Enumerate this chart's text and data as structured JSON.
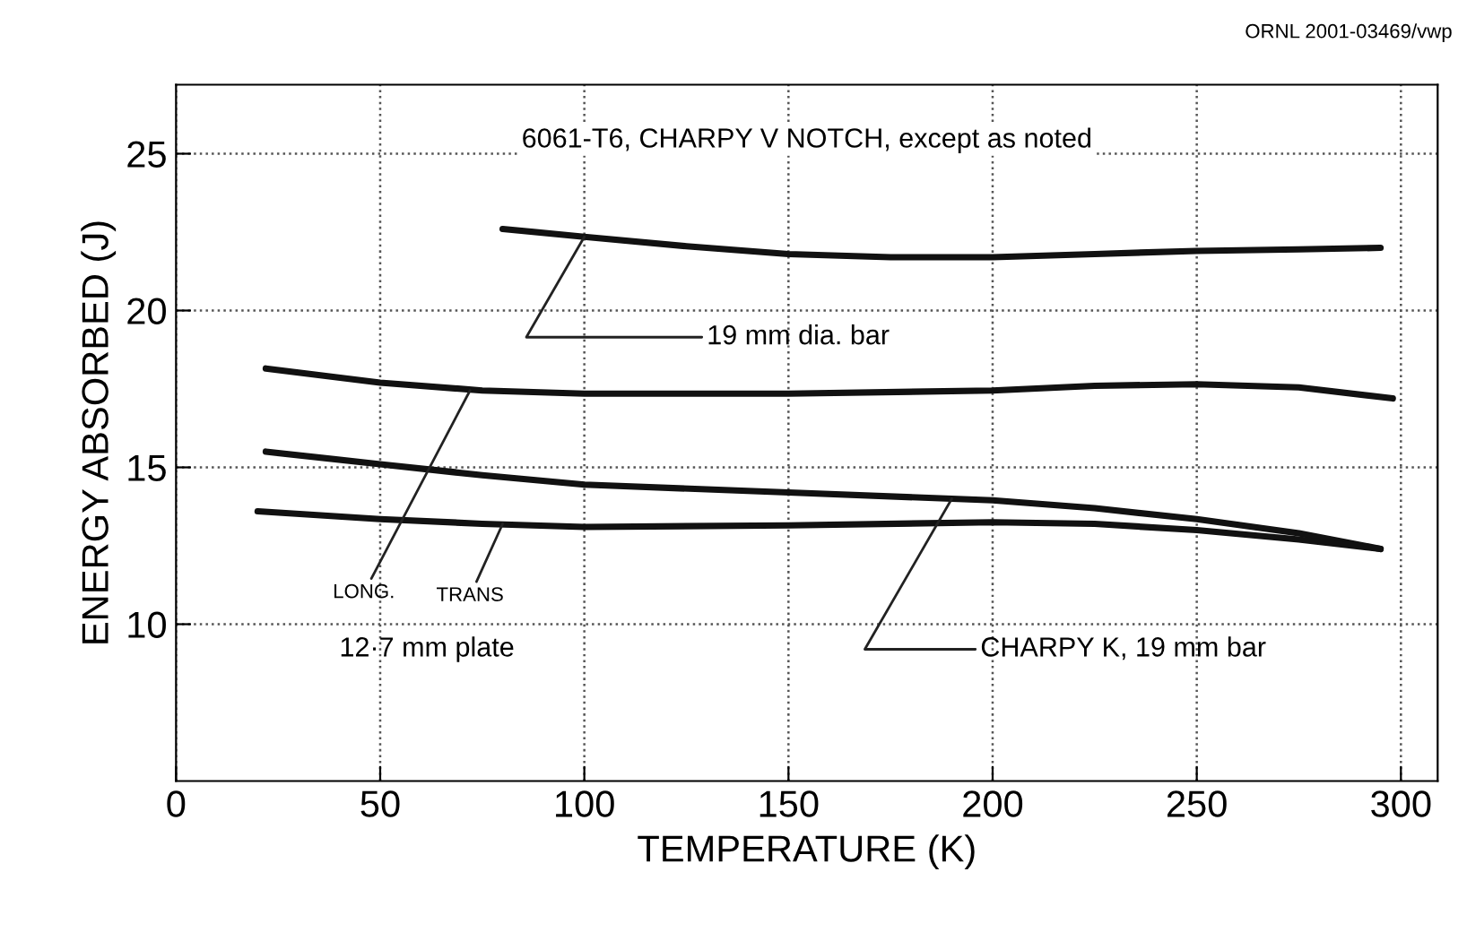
{
  "chart_data": {
    "type": "line",
    "xlabel": "TEMPERATURE (K)",
    "ylabel": "ENERGY ABSORBED (J)",
    "xlim": [
      0,
      309
    ],
    "ylim": [
      5,
      27.2
    ],
    "xticks": [
      0,
      50,
      100,
      150,
      200,
      250,
      300
    ],
    "yticks": [
      10,
      15,
      20,
      25
    ],
    "grid": true,
    "line_style": "solid",
    "marker": "none",
    "series": [
      {
        "color": "#111111",
        "x": [
          80,
          100,
          125,
          150,
          175,
          200,
          225,
          250,
          275,
          295
        ],
        "values": [
          22.6,
          22.35,
          22.05,
          21.8,
          21.7,
          21.7,
          21.8,
          21.9,
          21.95,
          22.0
        ]
      },
      {
        "color": "#111111",
        "x": [
          22,
          50,
          75,
          100,
          150,
          200,
          225,
          250,
          275,
          298
        ],
        "values": [
          18.15,
          17.7,
          17.45,
          17.35,
          17.35,
          17.45,
          17.6,
          17.65,
          17.55,
          17.2
        ]
      },
      {
        "color": "#111111",
        "x": [
          22,
          50,
          75,
          100,
          150,
          200,
          225,
          250,
          275,
          295
        ],
        "values": [
          15.5,
          15.1,
          14.75,
          14.45,
          14.2,
          13.95,
          13.7,
          13.35,
          12.9,
          12.4
        ]
      },
      {
        "color": "#111111",
        "x": [
          20,
          50,
          75,
          100,
          150,
          200,
          225,
          250,
          275,
          295
        ],
        "values": [
          13.6,
          13.35,
          13.2,
          13.1,
          13.15,
          13.25,
          13.2,
          13.0,
          12.7,
          12.4
        ]
      }
    ],
    "annotations": [
      "ORNL 2001-03469/vwp",
      "6061-T6, CHARPY V NOTCH, except as noted",
      {
        "text": "19 mm dia. bar",
        "x": 100,
        "y": 22.35
      },
      {
        "text": "LONG.",
        "x": 72,
        "y": 17.45
      },
      {
        "text": "TRANS",
        "x": 80,
        "y": 13.2
      },
      "12·7 mm plate",
      {
        "text": "CHARPY K, 19 mm bar",
        "x": 190,
        "y": 14.0
      }
    ]
  }
}
